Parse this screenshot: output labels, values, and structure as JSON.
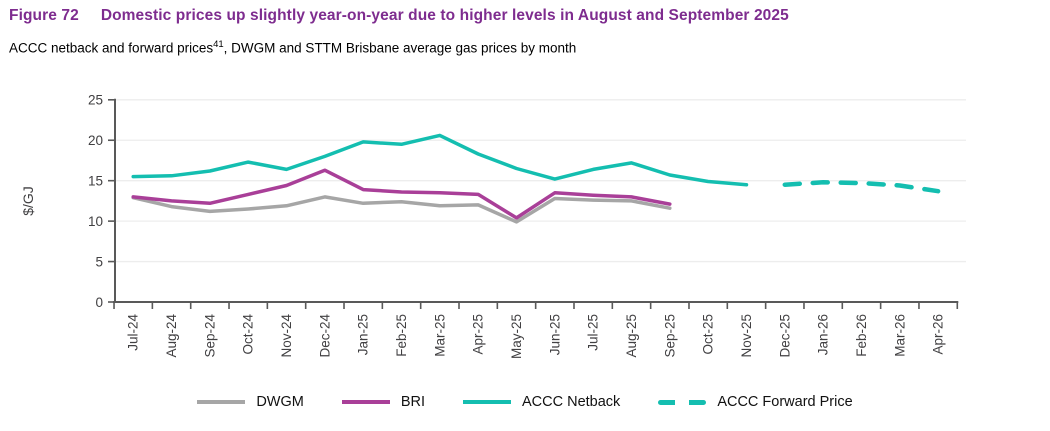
{
  "header": {
    "figure_label": "Figure 72",
    "title": "Domestic prices up slightly year-on-year due to higher levels in August and September 2025",
    "title_color": "#7e2c8f",
    "subtitle_pre": "ACCC netback and forward prices",
    "subtitle_sup": "41",
    "subtitle_post": ", DWGM and STTM Brisbane average gas prices by month"
  },
  "chart_data": {
    "type": "line",
    "title": "",
    "xlabel": "",
    "ylabel": "$/GJ",
    "ylim": [
      0,
      25
    ],
    "yticks": [
      0,
      5,
      10,
      15,
      20,
      25
    ],
    "grid": true,
    "legend_position": "bottom",
    "categories": [
      "Jul-24",
      "Aug-24",
      "Sep-24",
      "Oct-24",
      "Nov-24",
      "Dec-24",
      "Jan-25",
      "Feb-25",
      "Mar-25",
      "Apr-25",
      "May-25",
      "Jun-25",
      "Jul-25",
      "Aug-25",
      "Sep-25",
      "Oct-25",
      "Nov-25",
      "Dec-25",
      "Jan-26",
      "Feb-26",
      "Mar-26",
      "Apr-26"
    ],
    "series": [
      {
        "name": "DWGM",
        "color": "#a6a6a6",
        "style": "solid",
        "values": [
          12.9,
          11.8,
          11.2,
          11.5,
          11.9,
          13.0,
          12.2,
          12.4,
          11.9,
          12.0,
          9.9,
          12.8,
          12.6,
          12.5,
          11.6,
          null,
          null,
          null,
          null,
          null,
          null,
          null
        ]
      },
      {
        "name": "BRI",
        "color": "#a93f98",
        "style": "solid",
        "values": [
          13.0,
          12.5,
          12.2,
          13.3,
          14.4,
          16.3,
          13.9,
          13.6,
          13.5,
          13.3,
          10.4,
          13.5,
          13.2,
          13.0,
          12.1,
          null,
          null,
          null,
          null,
          null,
          null,
          null
        ]
      },
      {
        "name": "ACCC Netback",
        "color": "#14beb0",
        "style": "solid",
        "values": [
          15.5,
          15.6,
          16.2,
          17.3,
          16.4,
          18.0,
          19.8,
          19.5,
          20.6,
          18.3,
          16.5,
          15.2,
          16.4,
          17.2,
          15.7,
          14.9,
          14.5,
          null,
          null,
          null,
          null,
          null
        ]
      },
      {
        "name": "ACCC Forward Price",
        "color": "#14beb0",
        "style": "dashed",
        "values": [
          null,
          null,
          null,
          null,
          null,
          null,
          null,
          null,
          null,
          null,
          null,
          null,
          null,
          null,
          null,
          null,
          null,
          14.5,
          14.8,
          14.7,
          14.4,
          13.7
        ]
      }
    ]
  }
}
